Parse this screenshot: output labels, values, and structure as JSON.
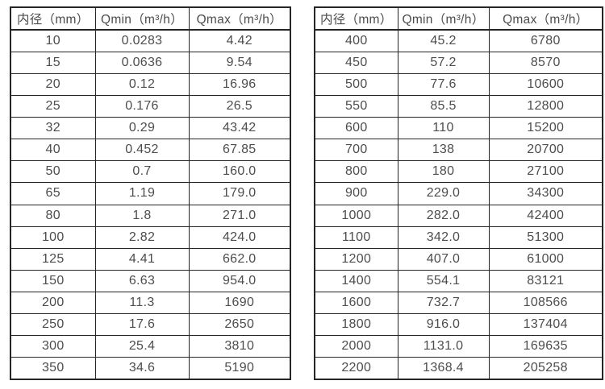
{
  "page": {
    "background": "#ffffff",
    "text_color": "#4d4d4d",
    "border_color": "#262626"
  },
  "tables": [
    {
      "headers": [
        "内径（mm）",
        "Qmin（m³/h）",
        "Qmax（m³/h）"
      ],
      "rows": [
        [
          "10",
          "0.0283",
          "4.42"
        ],
        [
          "15",
          "0.0636",
          "9.54"
        ],
        [
          "20",
          "0.12",
          "16.96"
        ],
        [
          "25",
          "0.176",
          "26.5"
        ],
        [
          "32",
          "0.29",
          "43.42"
        ],
        [
          "40",
          "0.452",
          "67.85"
        ],
        [
          "50",
          "0.7",
          "160.0"
        ],
        [
          "65",
          "1.19",
          "179.0"
        ],
        [
          "80",
          "1.8",
          "271.0"
        ],
        [
          "100",
          "2.82",
          "424.0"
        ],
        [
          "125",
          "4.41",
          "662.0"
        ],
        [
          "150",
          "6.63",
          "954.0"
        ],
        [
          "200",
          "11.3",
          "1690"
        ],
        [
          "250",
          "17.6",
          "2650"
        ],
        [
          "300",
          "25.4",
          "3810"
        ],
        [
          "350",
          "34.6",
          "5190"
        ]
      ]
    },
    {
      "headers": [
        "内径（mm）",
        "Qmin（m³/h）",
        "Qmax（m³/h）"
      ],
      "rows": [
        [
          "400",
          "45.2",
          "6780"
        ],
        [
          "450",
          "57.2",
          "8570"
        ],
        [
          "500",
          "77.6",
          "10600"
        ],
        [
          "550",
          "85.5",
          "12800"
        ],
        [
          "600",
          "110",
          "15200"
        ],
        [
          "700",
          "138",
          "20700"
        ],
        [
          "800",
          "180",
          "27100"
        ],
        [
          "900",
          "229.0",
          "34300"
        ],
        [
          "1000",
          "282.0",
          "42400"
        ],
        [
          "1100",
          "342.0",
          "51300"
        ],
        [
          "1200",
          "407.0",
          "61000"
        ],
        [
          "1400",
          "554.1",
          "83121"
        ],
        [
          "1600",
          "732.7",
          "108566"
        ],
        [
          "1800",
          "916.0",
          "137404"
        ],
        [
          "2000",
          "1131.0",
          "169635"
        ],
        [
          "2200",
          "1368.4",
          "205258"
        ]
      ]
    }
  ]
}
